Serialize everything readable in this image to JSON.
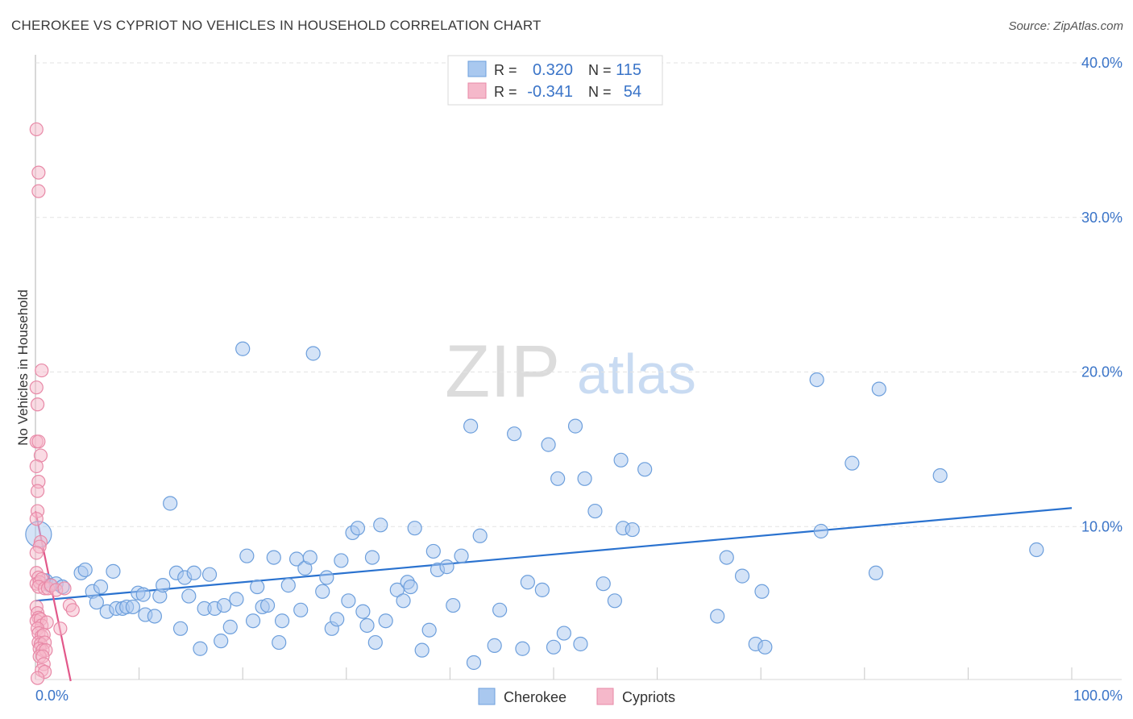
{
  "title": "CHEROKEE VS CYPRIOT NO VEHICLES IN HOUSEHOLD CORRELATION CHART",
  "source": "Source: ZipAtlas.com",
  "watermark": {
    "zip": "ZIP",
    "atlas": "atlas"
  },
  "colors": {
    "cherokee_fill": "#a9c8ef",
    "cherokee_stroke": "#6d9fdc",
    "cherokee_line": "#2a72cf",
    "cypriot_fill": "#f5b8ca",
    "cypriot_stroke": "#e889a7",
    "cypriot_line": "#e2588a",
    "value_text": "#3a74c8",
    "label_text": "#333333"
  },
  "legend": {
    "rows": [
      {
        "r_label": "R =",
        "r_value": "0.320",
        "n_label": "N =",
        "n_value": "115"
      },
      {
        "r_label": "R =",
        "r_value": "-0.341",
        "n_label": "N =",
        "n_value": "54"
      }
    ]
  },
  "chart_data": {
    "type": "scatter",
    "title": "CHEROKEE VS CYPRIOT NO VEHICLES IN HOUSEHOLD CORRELATION CHART",
    "xlabel": "",
    "ylabel": "No Vehicles in Household",
    "xlim": [
      0,
      100
    ],
    "ylim": [
      0,
      40
    ],
    "x_tick_labels": {
      "left": "0.0%",
      "right": "100.0%"
    },
    "y_ticks": [
      10,
      20,
      30,
      40
    ],
    "y_tick_labels": [
      "10.0%",
      "20.0%",
      "30.0%",
      "40.0%"
    ],
    "grid": true,
    "series": [
      {
        "name": "Cherokee",
        "trend": {
          "x": [
            0,
            100
          ],
          "y": [
            5.2,
            11.2
          ]
        },
        "points": [
          [
            0.3,
            9.5
          ],
          [
            1.0,
            6.5
          ],
          [
            1.4,
            6.2
          ],
          [
            2.0,
            6.3
          ],
          [
            2.6,
            6.1
          ],
          [
            4.4,
            7.0
          ],
          [
            4.8,
            7.2
          ],
          [
            5.5,
            5.8
          ],
          [
            5.9,
            5.1
          ],
          [
            6.3,
            6.1
          ],
          [
            6.9,
            4.5
          ],
          [
            7.5,
            7.1
          ],
          [
            7.8,
            4.7
          ],
          [
            8.4,
            4.7
          ],
          [
            8.8,
            4.8
          ],
          [
            9.4,
            4.8
          ],
          [
            9.9,
            5.7
          ],
          [
            10.4,
            5.6
          ],
          [
            10.6,
            4.3
          ],
          [
            11.5,
            4.2
          ],
          [
            12.0,
            5.5
          ],
          [
            12.3,
            6.2
          ],
          [
            13.0,
            11.5
          ],
          [
            13.6,
            7.0
          ],
          [
            14.0,
            3.4
          ],
          [
            14.4,
            6.7
          ],
          [
            14.8,
            5.5
          ],
          [
            15.3,
            7.0
          ],
          [
            15.9,
            2.1
          ],
          [
            16.3,
            4.7
          ],
          [
            16.8,
            6.9
          ],
          [
            17.3,
            4.7
          ],
          [
            17.9,
            2.6
          ],
          [
            18.2,
            4.9
          ],
          [
            18.8,
            3.5
          ],
          [
            19.4,
            5.3
          ],
          [
            20.0,
            21.5
          ],
          [
            20.4,
            8.1
          ],
          [
            21.0,
            3.9
          ],
          [
            21.4,
            6.1
          ],
          [
            21.9,
            4.8
          ],
          [
            22.4,
            4.9
          ],
          [
            23.0,
            8.0
          ],
          [
            23.5,
            2.5
          ],
          [
            23.8,
            3.9
          ],
          [
            24.4,
            6.2
          ],
          [
            25.2,
            7.9
          ],
          [
            25.6,
            4.6
          ],
          [
            26.0,
            7.3
          ],
          [
            26.5,
            8.0
          ],
          [
            26.8,
            21.2
          ],
          [
            27.7,
            5.8
          ],
          [
            28.1,
            6.7
          ],
          [
            28.6,
            3.4
          ],
          [
            29.1,
            4.0
          ],
          [
            29.5,
            7.8
          ],
          [
            30.2,
            5.2
          ],
          [
            30.6,
            9.6
          ],
          [
            31.1,
            9.9
          ],
          [
            31.6,
            4.5
          ],
          [
            32.0,
            3.6
          ],
          [
            32.5,
            8.0
          ],
          [
            32.8,
            2.5
          ],
          [
            33.3,
            10.1
          ],
          [
            33.8,
            3.9
          ],
          [
            34.9,
            5.9
          ],
          [
            35.5,
            5.2
          ],
          [
            35.9,
            6.4
          ],
          [
            36.2,
            6.1
          ],
          [
            36.6,
            9.9
          ],
          [
            37.3,
            2.0
          ],
          [
            38.0,
            3.3
          ],
          [
            38.4,
            8.4
          ],
          [
            38.8,
            7.2
          ],
          [
            39.7,
            7.4
          ],
          [
            40.3,
            4.9
          ],
          [
            41.1,
            8.1
          ],
          [
            42.0,
            16.5
          ],
          [
            42.3,
            1.2
          ],
          [
            42.9,
            9.4
          ],
          [
            44.3,
            2.3
          ],
          [
            44.8,
            4.6
          ],
          [
            46.2,
            16.0
          ],
          [
            47.0,
            2.1
          ],
          [
            47.5,
            6.4
          ],
          [
            48.9,
            5.9
          ],
          [
            49.5,
            15.3
          ],
          [
            50.0,
            2.2
          ],
          [
            50.4,
            13.1
          ],
          [
            51.0,
            3.1
          ],
          [
            52.1,
            16.5
          ],
          [
            52.6,
            2.4
          ],
          [
            53.0,
            13.1
          ],
          [
            54.0,
            11.0
          ],
          [
            54.8,
            6.3
          ],
          [
            55.9,
            5.2
          ],
          [
            56.5,
            14.3
          ],
          [
            56.7,
            9.9
          ],
          [
            57.6,
            9.8
          ],
          [
            58.8,
            13.7
          ],
          [
            65.8,
            4.2
          ],
          [
            66.7,
            8.0
          ],
          [
            68.2,
            6.8
          ],
          [
            69.5,
            2.4
          ],
          [
            70.1,
            5.8
          ],
          [
            70.4,
            2.2
          ],
          [
            75.4,
            19.5
          ],
          [
            75.8,
            9.7
          ],
          [
            78.8,
            14.1
          ],
          [
            81.1,
            7.0
          ],
          [
            81.4,
            18.9
          ],
          [
            87.3,
            13.3
          ],
          [
            96.6,
            8.5
          ]
        ]
      },
      {
        "name": "Cypriots",
        "trend": {
          "x": [
            0,
            3.4
          ],
          "y": [
            11.0,
            0.0
          ]
        },
        "points": [
          [
            0.1,
            35.7
          ],
          [
            0.3,
            32.9
          ],
          [
            0.3,
            31.7
          ],
          [
            0.6,
            20.1
          ],
          [
            0.1,
            19.0
          ],
          [
            0.2,
            17.9
          ],
          [
            0.1,
            15.5
          ],
          [
            0.3,
            15.5
          ],
          [
            0.5,
            14.6
          ],
          [
            0.1,
            13.9
          ],
          [
            0.3,
            12.9
          ],
          [
            0.2,
            12.3
          ],
          [
            0.2,
            11.0
          ],
          [
            0.1,
            10.5
          ],
          [
            0.5,
            9.0
          ],
          [
            0.4,
            8.7
          ],
          [
            0.1,
            8.3
          ],
          [
            0.1,
            7.0
          ],
          [
            0.3,
            6.7
          ],
          [
            0.1,
            6.3
          ],
          [
            0.4,
            6.4
          ],
          [
            0.6,
            6.6
          ],
          [
            0.3,
            6.1
          ],
          [
            0.9,
            6.0
          ],
          [
            1.2,
            6.0
          ],
          [
            1.5,
            6.2
          ],
          [
            2.0,
            5.9
          ],
          [
            2.8,
            6.0
          ],
          [
            0.1,
            4.8
          ],
          [
            0.2,
            4.4
          ],
          [
            0.3,
            4.1
          ],
          [
            0.1,
            3.9
          ],
          [
            0.5,
            4.0
          ],
          [
            0.6,
            3.6
          ],
          [
            1.1,
            3.8
          ],
          [
            0.2,
            3.4
          ],
          [
            0.3,
            3.1
          ],
          [
            0.6,
            2.9
          ],
          [
            0.8,
            3.0
          ],
          [
            0.3,
            2.5
          ],
          [
            0.5,
            2.4
          ],
          [
            0.9,
            2.5
          ],
          [
            0.4,
            2.1
          ],
          [
            0.7,
            2.0
          ],
          [
            1.0,
            2.0
          ],
          [
            0.4,
            1.6
          ],
          [
            0.7,
            1.6
          ],
          [
            0.8,
            1.1
          ],
          [
            0.6,
            0.7
          ],
          [
            0.9,
            0.6
          ],
          [
            2.4,
            3.4
          ],
          [
            3.3,
            4.9
          ],
          [
            3.6,
            4.6
          ],
          [
            0.2,
            0.2
          ]
        ]
      }
    ],
    "legend_entries": [
      "Cherokee",
      "Cypriots"
    ]
  }
}
